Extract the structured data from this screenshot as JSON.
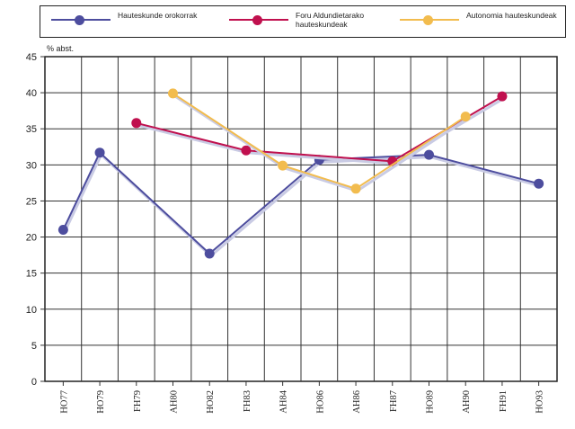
{
  "chart_data": {
    "type": "line",
    "ylabel": "% abst.",
    "ylim": [
      0,
      45
    ],
    "yticks": [
      0,
      5,
      10,
      15,
      20,
      25,
      30,
      35,
      40,
      45
    ],
    "categories": [
      "HO77",
      "HO79",
      "FH79",
      "AH80",
      "HO82",
      "FH83",
      "AH84",
      "HO86",
      "AH86",
      "FH87",
      "HO89",
      "AH90",
      "FH91",
      "HO93"
    ],
    "grid": true,
    "legend_position": "top",
    "series": [
      {
        "name": "Hauteskunde orokorrak",
        "color": "#4d4d9e",
        "points": [
          [
            "HO77",
            21
          ],
          [
            "HO79",
            31.7
          ],
          [
            "HO82",
            17.7
          ],
          [
            "HO86",
            30.7
          ],
          [
            "HO89",
            31.4
          ],
          [
            "HO93",
            27.4
          ]
        ]
      },
      {
        "name": "Foru Aldundietarako hauteskundeak",
        "color": "#c0104e",
        "points": [
          [
            "FH79",
            35.8
          ],
          [
            "FH83",
            32
          ],
          [
            "FH87",
            30.5
          ],
          [
            "FH91",
            39.5
          ]
        ]
      },
      {
        "name": "Autonomia hauteskundeak",
        "color": "#f2bc4e",
        "points": [
          [
            "AH80",
            39.9
          ],
          [
            "AH84",
            29.9
          ],
          [
            "AH86",
            26.7
          ],
          [
            "AH90",
            36.7
          ]
        ]
      }
    ]
  }
}
